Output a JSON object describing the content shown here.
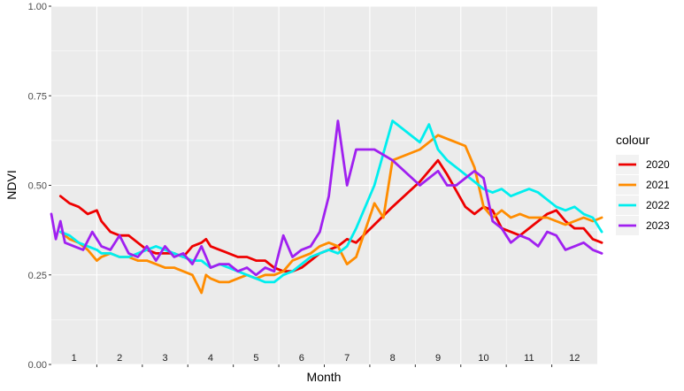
{
  "chart_data": {
    "type": "line",
    "xlabel": "Month",
    "ylabel": "NDVI",
    "ylim": [
      0,
      1
    ],
    "xlim": [
      0.5,
      12.5
    ],
    "y_ticks": [
      "0.00",
      "0.25",
      "0.50",
      "0.75",
      "1.00"
    ],
    "y_tick_values": [
      0,
      0.25,
      0.5,
      0.75,
      1
    ],
    "x_tick_labels": [
      "1",
      "2",
      "3",
      "4",
      "5",
      "6",
      "7",
      "8",
      "9",
      "10",
      "11",
      "12"
    ],
    "grid": true,
    "legend": {
      "title": "colour",
      "placement": "right"
    },
    "series": [
      {
        "name": "2020",
        "color": "#ee0000",
        "x": [
          0.7,
          0.9,
          1.1,
          1.3,
          1.5,
          1.6,
          1.8,
          2.0,
          2.2,
          2.4,
          2.6,
          2.8,
          3.0,
          3.2,
          3.4,
          3.6,
          3.8,
          3.9,
          4.0,
          4.2,
          4.4,
          4.6,
          4.8,
          5.0,
          5.2,
          5.4,
          5.6,
          5.8,
          6.0,
          6.2,
          6.4,
          6.6,
          6.8,
          7.0,
          7.2,
          8.0,
          8.6,
          9.0,
          9.2,
          9.6,
          9.8,
          10.0,
          10.2,
          10.4,
          10.6,
          10.8,
          11.0,
          11.2,
          11.4,
          11.6,
          11.8,
          12.0,
          12.2,
          12.4,
          12.6
        ],
        "y": [
          0.47,
          0.45,
          0.44,
          0.42,
          0.43,
          0.4,
          0.37,
          0.36,
          0.36,
          0.34,
          0.32,
          0.31,
          0.31,
          0.31,
          0.3,
          0.33,
          0.34,
          0.35,
          0.33,
          0.32,
          0.31,
          0.3,
          0.3,
          0.29,
          0.29,
          0.27,
          0.26,
          0.26,
          0.27,
          0.29,
          0.31,
          0.32,
          0.33,
          0.35,
          0.34,
          0.44,
          0.51,
          0.57,
          0.53,
          0.44,
          0.42,
          0.44,
          0.43,
          0.38,
          0.37,
          0.36,
          0.38,
          0.4,
          0.42,
          0.43,
          0.4,
          0.38,
          0.38,
          0.35,
          0.34
        ]
      },
      {
        "name": "2021",
        "color": "#ff8c00",
        "x": [
          0.7,
          0.9,
          1.1,
          1.3,
          1.5,
          1.6,
          1.8,
          2.0,
          2.2,
          2.4,
          2.6,
          2.8,
          3.0,
          3.2,
          3.4,
          3.6,
          3.8,
          3.9,
          4.0,
          4.2,
          4.4,
          4.6,
          4.8,
          5.0,
          5.2,
          5.4,
          5.6,
          5.8,
          6.0,
          6.2,
          6.4,
          6.6,
          6.8,
          7.0,
          7.2,
          7.6,
          7.8,
          8.0,
          8.6,
          9.0,
          9.6,
          9.8,
          10.0,
          10.2,
          10.4,
          10.6,
          10.8,
          11.0,
          11.2,
          11.4,
          11.6,
          11.8,
          12.0,
          12.2,
          12.4,
          12.6
        ],
        "y": [
          0.37,
          0.35,
          0.34,
          0.32,
          0.29,
          0.3,
          0.31,
          0.3,
          0.3,
          0.29,
          0.29,
          0.28,
          0.27,
          0.27,
          0.26,
          0.25,
          0.2,
          0.25,
          0.24,
          0.23,
          0.23,
          0.24,
          0.25,
          0.24,
          0.25,
          0.25,
          0.26,
          0.29,
          0.3,
          0.31,
          0.33,
          0.34,
          0.33,
          0.28,
          0.3,
          0.45,
          0.41,
          0.57,
          0.6,
          0.64,
          0.61,
          0.55,
          0.44,
          0.41,
          0.43,
          0.41,
          0.42,
          0.41,
          0.41,
          0.41,
          0.4,
          0.39,
          0.4,
          0.41,
          0.4,
          0.41
        ]
      },
      {
        "name": "2022",
        "color": "#00eeee",
        "x": [
          0.7,
          0.9,
          1.1,
          1.3,
          1.5,
          1.6,
          1.8,
          2.0,
          2.2,
          2.4,
          2.6,
          2.8,
          3.0,
          3.2,
          3.4,
          3.6,
          3.8,
          3.9,
          4.0,
          4.2,
          4.4,
          4.6,
          4.8,
          5.0,
          5.2,
          5.4,
          5.6,
          5.8,
          6.0,
          6.2,
          6.4,
          6.6,
          6.8,
          7.0,
          7.2,
          7.6,
          8.0,
          8.6,
          8.8,
          9.0,
          9.2,
          9.4,
          9.6,
          9.8,
          10.0,
          10.2,
          10.4,
          10.6,
          10.8,
          11.0,
          11.2,
          11.4,
          11.6,
          11.8,
          12.0,
          12.2,
          12.4,
          12.6
        ],
        "y": [
          0.37,
          0.36,
          0.34,
          0.33,
          0.32,
          0.31,
          0.31,
          0.3,
          0.3,
          0.31,
          0.32,
          0.33,
          0.32,
          0.31,
          0.3,
          0.29,
          0.29,
          0.28,
          0.27,
          0.28,
          0.27,
          0.26,
          0.25,
          0.24,
          0.23,
          0.23,
          0.25,
          0.26,
          0.28,
          0.3,
          0.31,
          0.32,
          0.31,
          0.33,
          0.38,
          0.5,
          0.68,
          0.62,
          0.67,
          0.6,
          0.57,
          0.55,
          0.53,
          0.51,
          0.49,
          0.48,
          0.49,
          0.47,
          0.48,
          0.49,
          0.48,
          0.46,
          0.44,
          0.43,
          0.44,
          0.42,
          0.41,
          0.37
        ]
      },
      {
        "name": "2023",
        "color": "#a020f0",
        "x": [
          0.5,
          0.6,
          0.7,
          0.8,
          1.0,
          1.2,
          1.4,
          1.6,
          1.8,
          2.0,
          2.2,
          2.4,
          2.6,
          2.8,
          3.0,
          3.2,
          3.4,
          3.6,
          3.8,
          4.0,
          4.2,
          4.4,
          4.6,
          4.8,
          5.0,
          5.2,
          5.4,
          5.6,
          5.8,
          6.0,
          6.2,
          6.4,
          6.6,
          6.8,
          7.0,
          7.2,
          7.6,
          8.0,
          8.6,
          9.0,
          9.2,
          9.4,
          9.6,
          9.8,
          10.0,
          10.2,
          10.4,
          10.6,
          10.8,
          11.0,
          11.2,
          11.4,
          11.6,
          11.8,
          12.0,
          12.2,
          12.4,
          12.6
        ],
        "y": [
          0.42,
          0.35,
          0.4,
          0.34,
          0.33,
          0.32,
          0.37,
          0.33,
          0.32,
          0.36,
          0.31,
          0.3,
          0.33,
          0.29,
          0.33,
          0.3,
          0.31,
          0.28,
          0.33,
          0.27,
          0.28,
          0.28,
          0.26,
          0.27,
          0.25,
          0.27,
          0.26,
          0.36,
          0.3,
          0.32,
          0.33,
          0.37,
          0.47,
          0.68,
          0.5,
          0.6,
          0.6,
          0.57,
          0.5,
          0.54,
          0.5,
          0.5,
          0.52,
          0.54,
          0.52,
          0.4,
          0.38,
          0.34,
          0.36,
          0.35,
          0.33,
          0.37,
          0.36,
          0.32,
          0.33,
          0.34,
          0.32,
          0.31
        ]
      }
    ]
  }
}
